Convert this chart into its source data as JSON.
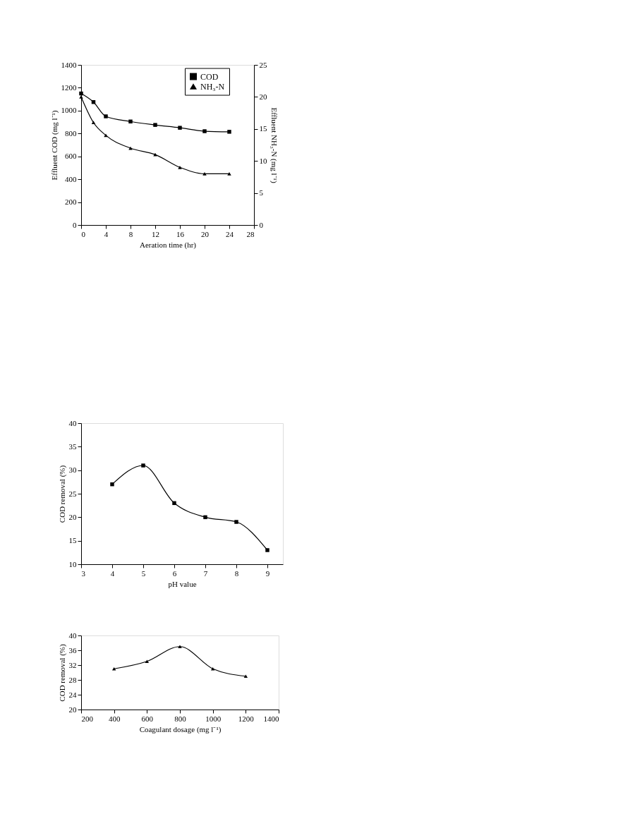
{
  "chart_data": [
    {
      "type": "line",
      "xlabel": "Aeration time (hr)",
      "ylabel": "Effluent COD (mg l⁻¹)",
      "y2label": "Effluent NH₃-N (mg l⁻¹)",
      "x": [
        0,
        2,
        4,
        8,
        12,
        16,
        20,
        24
      ],
      "xlim": [
        0,
        28
      ],
      "xticks": [
        0,
        4,
        8,
        12,
        16,
        20,
        24,
        28
      ],
      "ylim": [
        0,
        1400
      ],
      "yticks": [
        0,
        200,
        400,
        600,
        800,
        1000,
        1200,
        1400
      ],
      "y2lim": [
        0,
        25
      ],
      "y2ticks": [
        0,
        5,
        10,
        15,
        20,
        25
      ],
      "grid": false,
      "legend": "top right",
      "line_style": "solid",
      "series": [
        {
          "name": "COD",
          "color": "#000000",
          "marker": "square",
          "values": [
            1150,
            1075,
            950,
            905,
            875,
            850,
            820,
            815
          ]
        },
        {
          "name": "NH₃-N",
          "color": "#000000",
          "marker": "triangle",
          "axis": "y2",
          "values": [
            20,
            16,
            14,
            12,
            11,
            9,
            8,
            8
          ]
        }
      ]
    },
    {
      "type": "line",
      "xlabel": "pH value",
      "ylabel": "COD removal (%)",
      "x": [
        4,
        5,
        6,
        7,
        8,
        9
      ],
      "xlim": [
        3,
        9.5
      ],
      "xticks": [
        3,
        4,
        5,
        6,
        7,
        8,
        9
      ],
      "ylim": [
        10,
        40
      ],
      "yticks": [
        10,
        15,
        20,
        25,
        30,
        35,
        40
      ],
      "grid": false,
      "marker": "square",
      "line_style": "solid",
      "series": [
        {
          "color": "#000000",
          "values": [
            27,
            31,
            23,
            20,
            19,
            13
          ]
        }
      ]
    },
    {
      "type": "line",
      "xlabel": "Coagulant dosage (mg l⁻¹)",
      "ylabel": "COD removal (%)",
      "x": [
        400,
        600,
        800,
        1000,
        1200
      ],
      "xlim": [
        200,
        1400
      ],
      "xticks": [
        200,
        400,
        600,
        800,
        1000,
        1200,
        1400
      ],
      "ylim": [
        20,
        40
      ],
      "yticks": [
        20,
        24,
        28,
        32,
        36,
        40
      ],
      "grid": false,
      "marker": "triangle",
      "line_style": "solid",
      "series": [
        {
          "color": "#000000",
          "values": [
            31,
            33,
            37,
            31,
            29
          ]
        }
      ]
    }
  ]
}
